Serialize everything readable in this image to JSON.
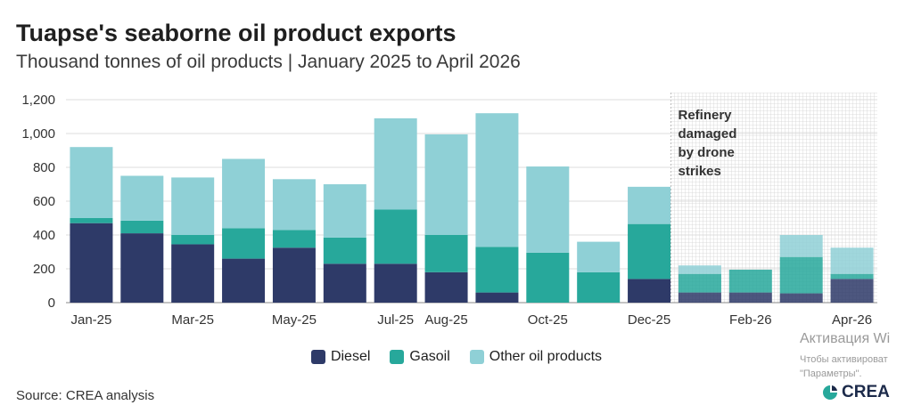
{
  "title": "Tuapse's seaborne oil product exports",
  "subtitle": "Thousand tonnes of oil products | January 2025 to April 2026",
  "source": "Source: CREA analysis",
  "brand": "CREA",
  "overlay": {
    "line1": "Активация Wi",
    "line2": "Чтобы активироват",
    "line3": "\"Параметры\"."
  },
  "colors": {
    "diesel": "#2e3a68",
    "gasoil": "#27a89b",
    "other": "#8fd0d6"
  },
  "chart_data": {
    "type": "bar",
    "stacked": true,
    "categories": [
      "Jan-25",
      "Feb-25",
      "Mar-25",
      "Apr-25",
      "May-25",
      "Jun-25",
      "Jul-25",
      "Aug-25",
      "Sep-25",
      "Oct-25",
      "Nov-25",
      "Dec-25",
      "Jan-26",
      "Feb-26",
      "Mar-26",
      "Apr-26"
    ],
    "x_tick_labels": [
      "Jan-25",
      "",
      "Mar-25",
      "",
      "May-25",
      "",
      "Jul-25",
      "Aug-25",
      "",
      "Oct-25",
      "",
      "Dec-25",
      "",
      "Feb-26",
      "",
      "Apr-26"
    ],
    "series": [
      {
        "name": "Diesel",
        "values": [
          470,
          410,
          345,
          260,
          325,
          230,
          230,
          180,
          60,
          0,
          0,
          140,
          60,
          60,
          55,
          140
        ]
      },
      {
        "name": "Gasoil",
        "values": [
          30,
          75,
          55,
          180,
          105,
          155,
          320,
          220,
          270,
          295,
          180,
          325,
          110,
          135,
          215,
          30
        ]
      },
      {
        "name": "Other oil products",
        "values": [
          420,
          265,
          340,
          410,
          300,
          315,
          540,
          595,
          790,
          510,
          180,
          220,
          50,
          0,
          130,
          155
        ]
      }
    ],
    "ylim": [
      0,
      1200
    ],
    "yticks": [
      0,
      200,
      400,
      600,
      800,
      1000,
      1200
    ],
    "ytick_labels": [
      "0",
      "200",
      "400",
      "600",
      "800",
      "1,000",
      "1,200"
    ],
    "grid": true,
    "legend_position": "bottom",
    "shaded_region": {
      "from": "Jan-26",
      "to": "Apr-26"
    },
    "annotation": [
      "Refinery",
      "damaged",
      "by drone",
      "strikes"
    ]
  }
}
